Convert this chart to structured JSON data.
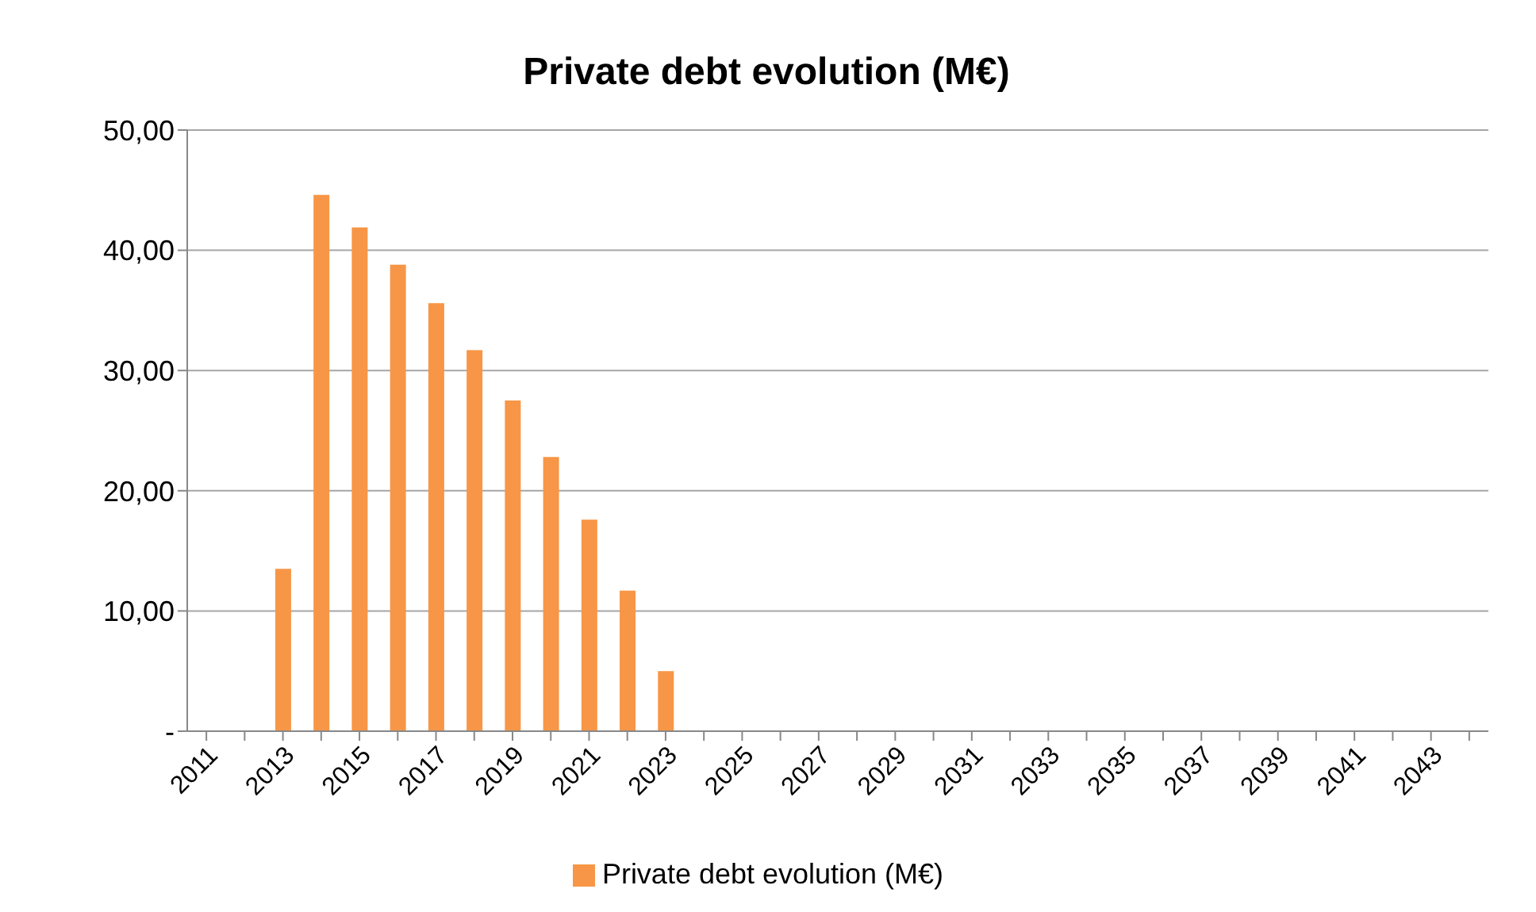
{
  "chart_data": {
    "type": "bar",
    "title": "Private debt evolution (M€)",
    "categories": [
      "2011",
      null,
      "2013",
      null,
      "2015",
      null,
      "2017",
      null,
      "2019",
      null,
      "2021",
      null,
      "2023",
      null,
      "2025",
      null,
      "2027",
      null,
      "2029",
      null,
      "2031",
      null,
      "2033",
      null,
      "2035",
      null,
      "2037",
      null,
      "2039",
      null,
      "2041",
      null,
      "2043",
      null
    ],
    "series": [
      {
        "name": "Private debt evolution (M€)",
        "color": "#f79646",
        "values": [
          null,
          null,
          13.5,
          44.6,
          41.9,
          38.8,
          35.6,
          31.7,
          27.5,
          22.8,
          17.6,
          11.7,
          5.0,
          null,
          null,
          null,
          null,
          null,
          null,
          null,
          null,
          null,
          null,
          null,
          null,
          null,
          null,
          null,
          null,
          null,
          null,
          null,
          null,
          null
        ]
      }
    ],
    "ylim": [
      0,
      50
    ],
    "yticks": [
      {
        "value": 0,
        "label": "-"
      },
      {
        "value": 10,
        "label": "10,00"
      },
      {
        "value": 20,
        "label": "20,00"
      },
      {
        "value": 30,
        "label": "30,00"
      },
      {
        "value": 40,
        "label": "40,00"
      },
      {
        "value": 50,
        "label": "50,00"
      }
    ],
    "grid": "y",
    "legend": "bottom"
  }
}
